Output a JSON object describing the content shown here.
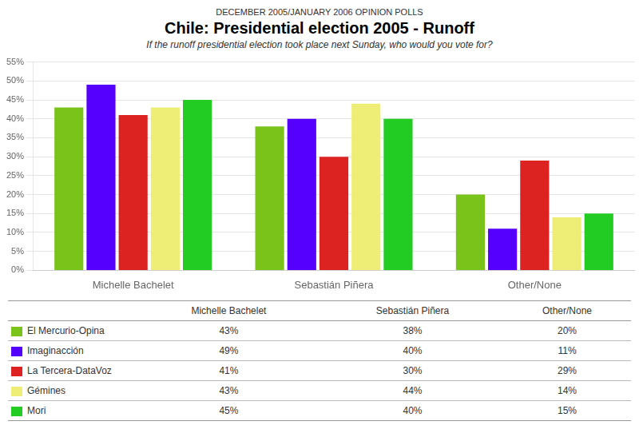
{
  "chart_data": {
    "type": "bar",
    "title": "Chile: Presidential election 2005 - Runoff",
    "subtitle": "If the runoff presidential election took place next Sunday, who would you vote for?",
    "annotations": [
      "DECEMBER 2005/JANUARY 2006 OPINION POLLS"
    ],
    "categories": [
      "Michelle Bachelet",
      "Sebastián Piñera",
      "Other/None"
    ],
    "series": [
      {
        "name": "El Mercurio-Opina",
        "color": "#7ac31a",
        "values": [
          43,
          38,
          20
        ],
        "value_labels": [
          "43%",
          "38%",
          "20%"
        ]
      },
      {
        "name": "Imaginacción",
        "color": "#5500ff",
        "values": [
          49,
          40,
          11
        ],
        "value_labels": [
          "49%",
          "40%",
          "11%"
        ]
      },
      {
        "name": "La Tercera-DataVoz",
        "color": "#dd2222",
        "values": [
          41,
          30,
          29
        ],
        "value_labels": [
          "41%",
          "30%",
          "29%"
        ]
      },
      {
        "name": "Gémines",
        "color": "#eeee77",
        "values": [
          43,
          44,
          14
        ],
        "value_labels": [
          "43%",
          "44%",
          "14%"
        ]
      },
      {
        "name": "Mori",
        "color": "#22cc22",
        "values": [
          45,
          40,
          15
        ],
        "value_labels": [
          "45%",
          "40%",
          "15%"
        ]
      }
    ],
    "ylim": [
      0,
      55
    ],
    "yticks": [
      {
        "value": 0,
        "label": "0%"
      },
      {
        "value": 5,
        "label": "5%"
      },
      {
        "value": 10,
        "label": "10%"
      },
      {
        "value": 15,
        "label": "15%"
      },
      {
        "value": 20,
        "label": "20%"
      },
      {
        "value": 25,
        "label": "25%"
      },
      {
        "value": 30,
        "label": "30%"
      },
      {
        "value": 35,
        "label": "35%"
      },
      {
        "value": 40,
        "label": "40%"
      },
      {
        "value": 45,
        "label": "45%"
      },
      {
        "value": 50,
        "label": "50%"
      },
      {
        "value": 55,
        "label": "55%"
      }
    ],
    "grid": true
  }
}
